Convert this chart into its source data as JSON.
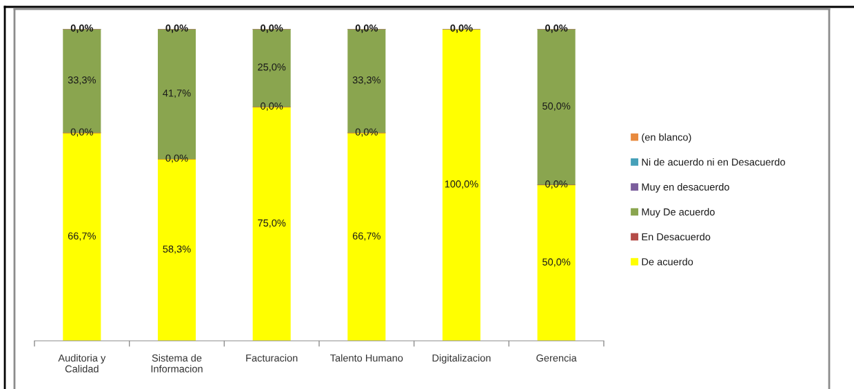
{
  "chart_data": {
    "type": "bar",
    "stacked": true,
    "categories": [
      "Auditoria y\nCalidad",
      "Sistema de\nInformacion",
      "Facturacion",
      "Talento Humano",
      "Digitalizacion",
      "Gerencia"
    ],
    "series": [
      {
        "name": "De acuerdo",
        "color": "#ffff00",
        "values": [
          66.7,
          58.3,
          75.0,
          66.7,
          100.0,
          50.0
        ],
        "value_labels": [
          "66,7%",
          "58,3%",
          "75,0%",
          "66,7%",
          "100,0%",
          "50,0%"
        ]
      },
      {
        "name": "En Desacuerdo",
        "color": "#b44c48",
        "values": [
          0,
          0,
          0,
          0,
          0,
          0
        ],
        "value_labels": [
          "0,0%",
          "0,0%",
          "0,0%",
          "0,0%",
          null,
          "0,0%"
        ]
      },
      {
        "name": "Muy De acuerdo",
        "color": "#8aa54f",
        "values": [
          33.3,
          41.7,
          25.0,
          33.3,
          0,
          50.0
        ],
        "value_labels": [
          "33,3%",
          "41,7%",
          "25,0%",
          "33,3%",
          null,
          "50,0%"
        ]
      },
      {
        "name": "Muy en desacuerdo",
        "color": "#7b5e9c",
        "values": [
          0,
          0,
          0,
          0,
          0,
          0
        ],
        "value_labels": [
          null,
          null,
          null,
          null,
          null,
          null
        ]
      },
      {
        "name": "Ni de acuerdo ni en Desacuerdo",
        "color": "#46a0b8",
        "values": [
          0,
          0,
          0,
          0,
          0,
          0
        ],
        "value_labels": [
          null,
          null,
          null,
          null,
          null,
          null
        ]
      },
      {
        "name": "(en blanco)",
        "color": "#e88a3e",
        "values": [
          0,
          0,
          0,
          0,
          0,
          0
        ],
        "value_labels": [
          "0,0%",
          "0,0%",
          "0,0%",
          "0,0%",
          "0,0%",
          "0,0%"
        ]
      }
    ],
    "legend": "right",
    "grid": false
  }
}
